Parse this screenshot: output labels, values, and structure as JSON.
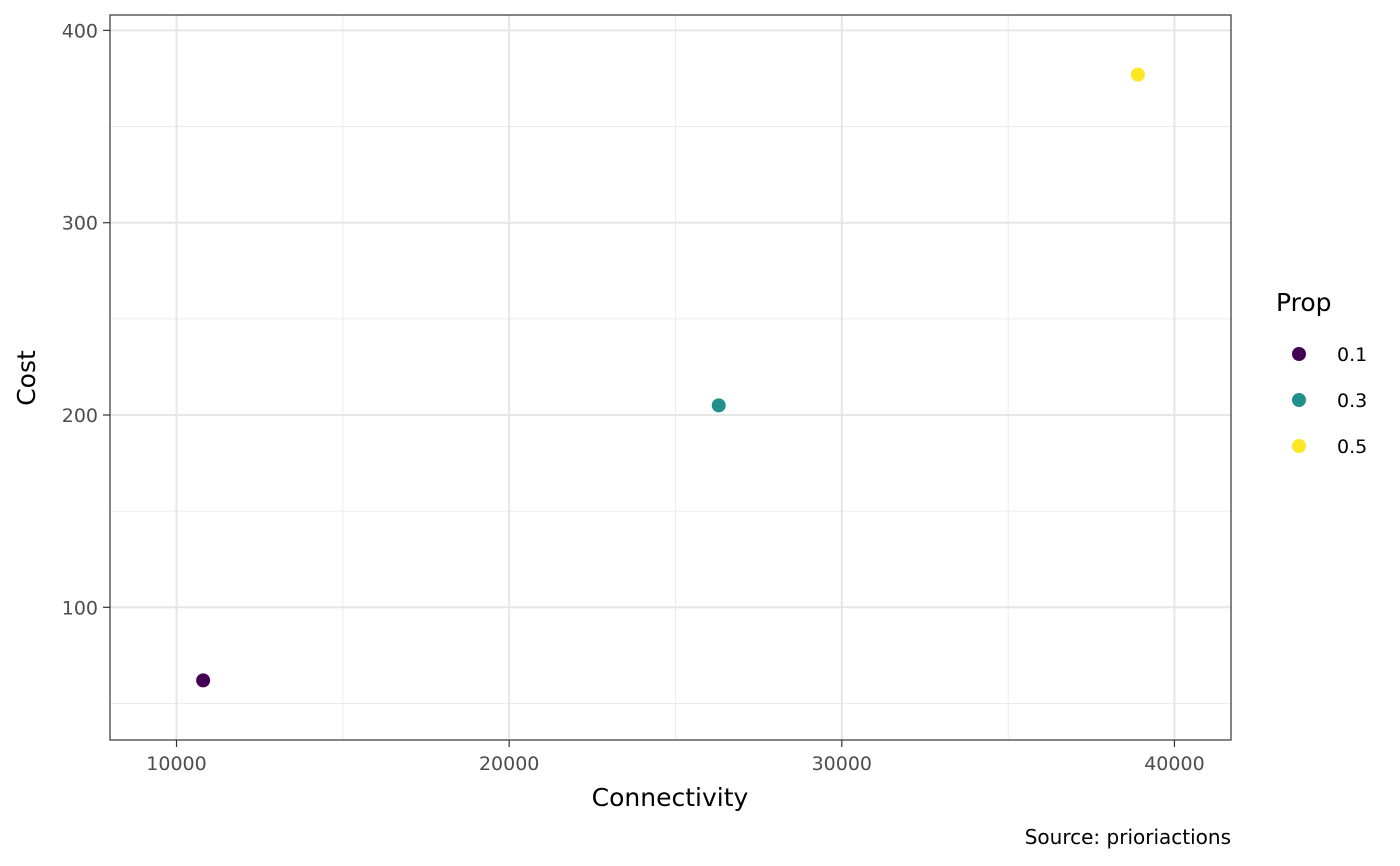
{
  "chart_data": {
    "type": "scatter",
    "xlabel": "Connectivity",
    "ylabel": "Cost",
    "caption": "Source: prioriactions",
    "xlim": [
      8000,
      41700
    ],
    "ylim": [
      31,
      408
    ],
    "x_ticks": [
      10000,
      20000,
      30000,
      40000
    ],
    "y_ticks": [
      100,
      200,
      300,
      400
    ],
    "x_tick_labels": [
      "10000",
      "20000",
      "30000",
      "40000"
    ],
    "y_tick_labels": [
      "100",
      "200",
      "300",
      "400"
    ],
    "grid": true,
    "legend": {
      "title": "Prop",
      "placement": "right",
      "items": [
        {
          "label": "0.1",
          "color": "#440154"
        },
        {
          "label": "0.3",
          "color": "#21908C"
        },
        {
          "label": "0.5",
          "color": "#FDE725"
        }
      ]
    },
    "points": [
      {
        "x": 10800,
        "y": 62,
        "prop": "0.1",
        "color": "#440154"
      },
      {
        "x": 26300,
        "y": 205,
        "prop": "0.3",
        "color": "#21908C"
      },
      {
        "x": 38900,
        "y": 377,
        "prop": "0.5",
        "color": "#FDE725"
      }
    ]
  }
}
